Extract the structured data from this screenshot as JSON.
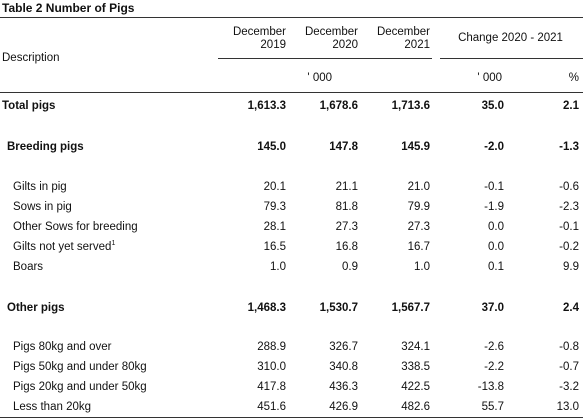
{
  "title": "Table 2 Number of Pigs",
  "header": {
    "description": "Description",
    "col1": [
      "December",
      "2019"
    ],
    "col2": [
      "December",
      "2020"
    ],
    "col3": [
      "December",
      "2021"
    ],
    "change": "Change 2020 - 2021",
    "unit_thousand": "' 000",
    "unit_change": "' 000",
    "unit_pct": "%"
  },
  "rows": [
    {
      "label": "Total pigs",
      "v": [
        "1,613.3",
        "1,678.6",
        "1,713.6",
        "35.0",
        "2.1"
      ]
    },
    {
      "label": "Breeding pigs",
      "v": [
        "145.0",
        "147.8",
        "145.9",
        "-2.0",
        "-1.3"
      ]
    },
    {
      "label": "Gilts in pig",
      "v": [
        "20.1",
        "21.1",
        "21.0",
        "-0.1",
        "-0.6"
      ]
    },
    {
      "label": "Sows in pig",
      "v": [
        "79.3",
        "81.8",
        "79.9",
        "-1.9",
        "-2.3"
      ]
    },
    {
      "label": "Other Sows for breeding",
      "v": [
        "28.1",
        "27.3",
        "27.3",
        "0.0",
        "-0.1"
      ]
    },
    {
      "label": "Gilts not yet served",
      "sup": "1",
      "v": [
        "16.5",
        "16.8",
        "16.7",
        "0.0",
        "-0.2"
      ]
    },
    {
      "label": "Boars",
      "v": [
        "1.0",
        "0.9",
        "1.0",
        "0.1",
        "9.9"
      ]
    },
    {
      "label": "Other pigs",
      "v": [
        "1,468.3",
        "1,530.7",
        "1,567.7",
        "37.0",
        "2.4"
      ]
    },
    {
      "label": "Pigs 80kg and over",
      "v": [
        "288.9",
        "326.7",
        "324.1",
        "-2.6",
        "-0.8"
      ]
    },
    {
      "label": "Pigs 50kg and under 80kg",
      "v": [
        "310.0",
        "340.8",
        "338.5",
        "-2.2",
        "-0.7"
      ]
    },
    {
      "label": "Pigs 20kg and under 50kg",
      "v": [
        "417.8",
        "436.3",
        "422.5",
        "-13.8",
        "-3.2"
      ]
    },
    {
      "label": "Less than 20kg",
      "v": [
        "451.6",
        "426.9",
        "482.6",
        "55.7",
        "13.0"
      ]
    }
  ]
}
